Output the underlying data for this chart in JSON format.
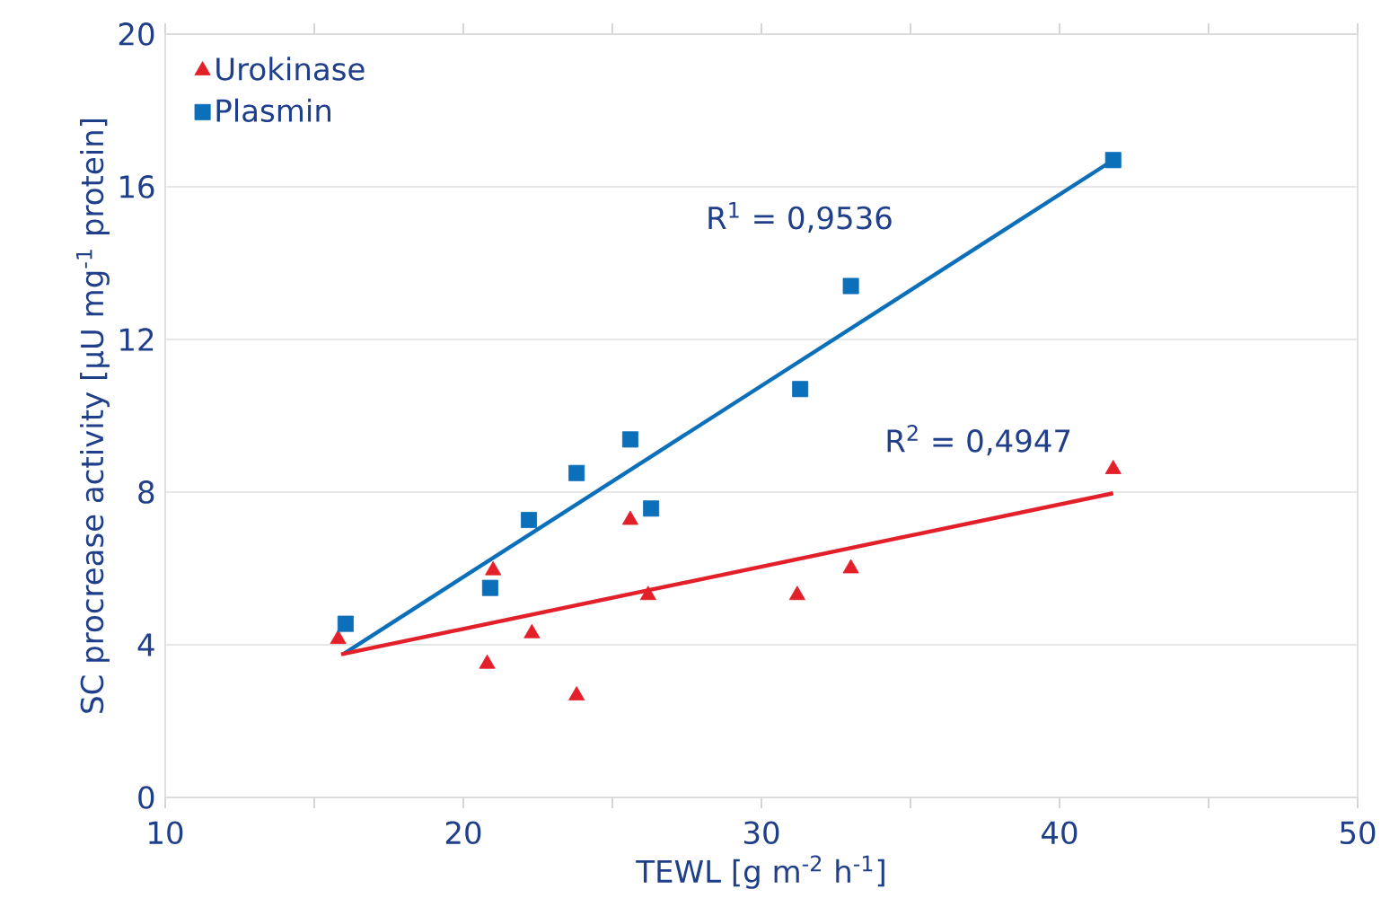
{
  "chart_data": {
    "type": "scatter",
    "xlabel": "TEWL [g m$^{-2}$ h$^{-1}$]",
    "ylabel": "SC procrease activity [µU mg$^{-1}$ protein]",
    "xlim": [
      10,
      50
    ],
    "xticks": [
      10,
      {
        "value": 15,
        "label": null
      },
      20,
      {
        "value": 25,
        "label": null
      },
      30,
      {
        "value": 35,
        "label": null
      },
      40,
      {
        "value": 45,
        "label": null
      },
      50
    ],
    "ylim": [
      0,
      20
    ],
    "yticks": [
      0,
      4,
      8,
      12,
      16,
      20
    ],
    "grid": "y",
    "legend": "top left",
    "series": [
      {
        "name": "Urokinase",
        "marker": "triangle",
        "color": "#e3202a",
        "x": [
          15.8,
          20.8,
          21.0,
          22.3,
          23.8,
          25.6,
          26.2,
          31.2,
          33.0,
          41.8
        ],
        "values": [
          4.15,
          3.5,
          5.95,
          4.3,
          2.67,
          7.27,
          5.3,
          5.3,
          6.0,
          8.6
        ]
      },
      {
        "name": "Plasmin",
        "marker": "square",
        "color": "#0b6fba",
        "x": [
          16.05,
          20.9,
          22.2,
          23.8,
          25.6,
          26.3,
          31.3,
          33.0,
          41.8
        ],
        "values": [
          4.55,
          5.49,
          7.27,
          8.5,
          9.38,
          7.57,
          10.7,
          13.4,
          16.7
        ]
      },
      {
        "type": "line",
        "color": "#0b6fba",
        "x": [
          16.0,
          41.8
        ],
        "values": [
          3.77,
          16.7
        ]
      },
      {
        "type": "line",
        "color": "#e3202a",
        "x": [
          15.9,
          41.8
        ],
        "values": [
          3.75,
          7.97
        ]
      }
    ],
    "annotations": [
      "R$^{1}$ = 0,9536",
      "R$^{2}$ = 0,4947"
    ]
  }
}
